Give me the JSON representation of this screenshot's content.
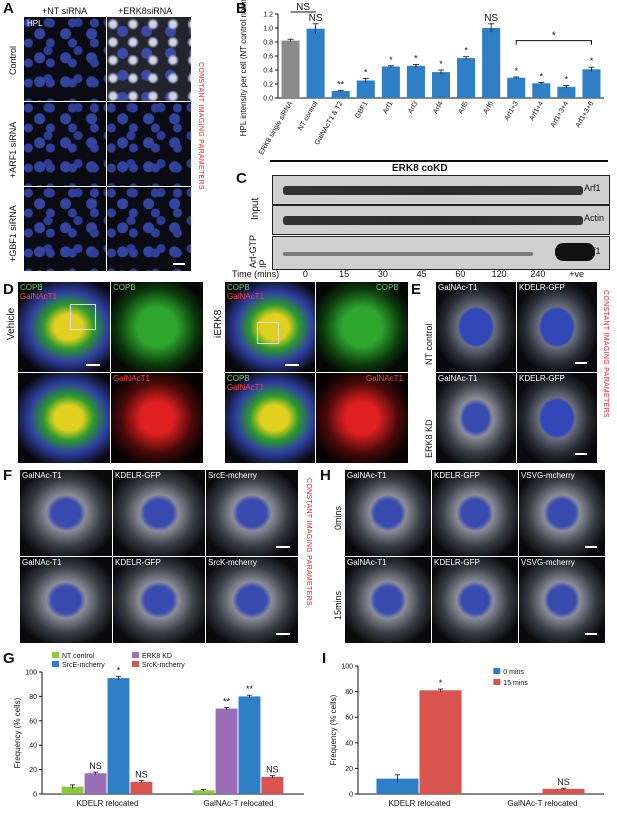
{
  "panel_labels": [
    "A",
    "B",
    "C",
    "D",
    "E",
    "F",
    "G",
    "H",
    "I"
  ],
  "panelA": {
    "col_labels": [
      "+NT siRNA",
      "+ERK8siRNA"
    ],
    "row_labels": [
      "Control",
      "+ARF1 siRNA",
      "+GBF1 siRNA"
    ],
    "stain": "HPL",
    "side_note": "CONSTANT IMAGING PARAMETERS"
  },
  "panelC": {
    "row_labels": [
      "Input",
      "Arf-GTP IP"
    ],
    "band_labels": [
      "Arf1",
      "Actin",
      "Arf1"
    ],
    "time_label": "Time (mins)",
    "times": [
      "0",
      "15",
      "30",
      "45",
      "60",
      "120",
      "240",
      "+ve"
    ],
    "kd_label": "ERK8 coKD"
  },
  "panelD": {
    "vehicle": "Vehicle",
    "treated": "iERK8",
    "ch1": "COPB",
    "ch2": "GalNAcT1"
  },
  "panelE": {
    "ch1": "GalNAc-T1",
    "ch2": "KDELR-GFP",
    "rows": [
      "NT control",
      "ERK8 KD"
    ],
    "side_note": "CONSTANT IMAGING PARAMETERS"
  },
  "panelF": {
    "ch1": "GalNAc-T1",
    "ch2": "KDELR-GFP",
    "ch3a": "SrcE-mcherry",
    "ch3b": "SrcK-mcherry",
    "side_note": "CONSTANT IMAGING PARAMETERS"
  },
  "panelH": {
    "ch1": "GalNAc-T1",
    "ch2": "KDELR-GFP",
    "ch3": "VSVG-mcherry",
    "rows": [
      "0mins",
      "15mins"
    ]
  },
  "chart_data": [
    {
      "id": "B",
      "type": "bar",
      "ylabel": "HPL intensity per cell (NT control normalised)",
      "ylim": [
        0,
        1.2
      ],
      "yticks": [
        0,
        0.2,
        0.4,
        0.6,
        0.8,
        1.0,
        1.2
      ],
      "categories": [
        "ERK8 single siRNA",
        "NT control",
        "GalNAcT1 & T2",
        "GBF1",
        "Arf1",
        "Arf3",
        "Arf4",
        "Arf5",
        "Arf6",
        "Arf1+3",
        "Arf1+4",
        "Arf1+3+4",
        "Arf1+3+6"
      ],
      "values": [
        0.82,
        0.99,
        0.1,
        0.25,
        0.45,
        0.46,
        0.37,
        0.57,
        1.0,
        0.29,
        0.21,
        0.16,
        0.41
      ],
      "errors": [
        0.02,
        0.07,
        0.01,
        0.03,
        0.01,
        0.02,
        0.03,
        0.02,
        0.06,
        0.01,
        0.01,
        0.02,
        0.03
      ],
      "colors": [
        "#8c8c8c",
        "#2f7fc6",
        "#2f7fc6",
        "#2f7fc6",
        "#2f7fc6",
        "#2f7fc6",
        "#2f7fc6",
        "#2f7fc6",
        "#2f7fc6",
        "#2f7fc6",
        "#2f7fc6",
        "#2f7fc6",
        "#2f7fc6"
      ],
      "annotations": [
        "",
        "NS",
        "**",
        "*",
        "*",
        "*",
        "*",
        "*",
        "NS",
        "*",
        "*",
        "*",
        "*"
      ],
      "bracket_labels": [
        "NS",
        "*"
      ]
    },
    {
      "id": "G",
      "type": "bar",
      "ylabel": "Frequency (% cells)",
      "ylim": [
        0,
        100
      ],
      "yticks": [
        0,
        20,
        40,
        60,
        80,
        100
      ],
      "categories": [
        "KDELR relocated",
        "GalNAc-T relocated"
      ],
      "series": [
        {
          "name": "NT control",
          "color": "#8dc63f",
          "values": [
            6,
            3
          ],
          "errors": [
            1.5,
            0.8
          ],
          "annotations": [
            "",
            ""
          ]
        },
        {
          "name": "ERK8 KD",
          "color": "#9b6fb8",
          "values": [
            17,
            70
          ],
          "errors": [
            1,
            1
          ],
          "annotations": [
            "NS",
            "**"
          ]
        },
        {
          "name": "SrcE-mcherry",
          "color": "#2f7fc6",
          "values": [
            95,
            80
          ],
          "errors": [
            1.5,
            1
          ],
          "annotations": [
            "*",
            "**"
          ]
        },
        {
          "name": "SrcK-mcherry",
          "color": "#d9534f",
          "values": [
            10,
            14
          ],
          "errors": [
            1,
            1
          ],
          "annotations": [
            "NS",
            "NS"
          ]
        }
      ],
      "legend": "top"
    },
    {
      "id": "I",
      "type": "bar",
      "ylabel": "Frequency (% cells)",
      "ylim": [
        0,
        100
      ],
      "yticks": [
        0,
        20,
        40,
        60,
        80,
        100
      ],
      "categories": [
        "KDELR relocated",
        "GalNAc-T relocated"
      ],
      "series": [
        {
          "name": "0 mins",
          "color": "#2f7fc6",
          "values": [
            12,
            0
          ],
          "errors": [
            3,
            0
          ],
          "annotations": [
            "",
            ""
          ]
        },
        {
          "name": "15 mins",
          "color": "#d9534f",
          "values": [
            81,
            4
          ],
          "errors": [
            1,
            0.5
          ],
          "annotations": [
            "*",
            "NS"
          ]
        }
      ],
      "legend": "top-right"
    }
  ]
}
